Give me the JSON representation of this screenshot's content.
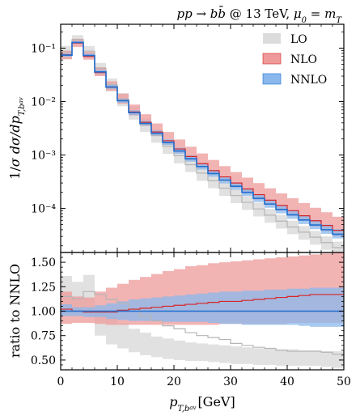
{
  "chart_data": {
    "type": "line",
    "title": "pp → b b̄ @ 13 TeV, μ₀ = m_T",
    "xlabel": "p_T,b_av [GeV]",
    "x_edges": [
      0,
      2,
      4,
      6,
      8,
      10,
      12,
      14,
      16,
      18,
      20,
      22,
      24,
      26,
      28,
      30,
      32,
      34,
      36,
      38,
      40,
      42,
      44,
      46,
      48,
      50
    ],
    "xlim": [
      0,
      50
    ],
    "xticks": [
      "0",
      "10",
      "20",
      "30",
      "40",
      "50"
    ],
    "top_panel": {
      "ylabel": "1/σ dσ/dp_T,b_av",
      "yscale": "log",
      "ylim": [
        1.5e-05,
        0.28
      ],
      "yticks": [
        "10⁻¹",
        "10⁻²",
        "10⁻³",
        "10⁻⁴"
      ],
      "series": [
        {
          "name": "LO",
          "color": "#b5b5b5",
          "fill": "#dcdcdc",
          "values": [
            0.085,
            0.145,
            0.088,
            0.042,
            0.021,
            0.0112,
            0.0063,
            0.0037,
            0.0023,
            0.00145,
            0.00097,
            0.00066,
            0.00046,
            0.00033,
            0.00024,
            0.000175,
            0.00013,
            9.8e-05,
            7.5e-05,
            5.8e-05,
            4.5e-05,
            3.6e-05,
            2.9e-05,
            2.3e-05,
            1.85e-05
          ],
          "lower": [
            0.062,
            0.115,
            0.068,
            0.031,
            0.0155,
            0.0082,
            0.0046,
            0.0027,
            0.0017,
            0.00105,
            0.0007,
            0.00048,
            0.00033,
            0.00024,
            0.000172,
            0.000126,
            9.4e-05,
            7.1e-05,
            5.4e-05,
            4.2e-05,
            3.3e-05,
            2.6e-05,
            2.1e-05,
            1.68e-05,
            1.35e-05
          ],
          "upper": [
            0.11,
            0.175,
            0.11,
            0.053,
            0.027,
            0.0145,
            0.0082,
            0.0048,
            0.003,
            0.00188,
            0.00125,
            0.00086,
            0.0006,
            0.00043,
            0.00031,
            0.000227,
            0.000169,
            0.000128,
            9.8e-05,
            7.6e-05,
            5.9e-05,
            4.7e-05,
            3.8e-05,
            3e-05,
            2.4e-05
          ]
        },
        {
          "name": "NLO",
          "color": "#d62728",
          "fill": "#ee9a9a",
          "values": [
            0.075,
            0.125,
            0.07,
            0.035,
            0.0185,
            0.0105,
            0.0064,
            0.0041,
            0.0027,
            0.00185,
            0.0013,
            0.00094,
            0.00069,
            0.00051,
            0.00039,
            0.0003,
            0.000232,
            0.000181,
            0.000143,
            0.000114,
            9.1e-05,
            7.3e-05,
            5.9e-05,
            4.8e-05,
            3.9e-05
          ],
          "lower": [
            0.062,
            0.105,
            0.061,
            0.03,
            0.016,
            0.0091,
            0.0055,
            0.0035,
            0.0023,
            0.00157,
            0.0011,
            0.00079,
            0.00058,
            0.00043,
            0.00032,
            0.000245,
            0.000188,
            0.000146,
            0.000115,
            9.1e-05,
            7.2e-05,
            5.8e-05,
            4.6e-05,
            3.7e-05,
            3e-05
          ],
          "upper": [
            0.09,
            0.15,
            0.085,
            0.044,
            0.024,
            0.014,
            0.0088,
            0.0058,
            0.0039,
            0.0027,
            0.00195,
            0.00143,
            0.00107,
            0.00081,
            0.00062,
            0.00048,
            0.000378,
            0.000299,
            0.000238,
            0.000192,
            0.000155,
            0.000126,
            0.000103,
            8.5e-05,
            7e-05
          ]
        },
        {
          "name": "NNLO",
          "color": "#1f6fd1",
          "fill": "#8ab8ec",
          "values": [
            0.074,
            0.128,
            0.073,
            0.036,
            0.0188,
            0.0104,
            0.0062,
            0.0039,
            0.00255,
            0.00172,
            0.00119,
            0.00085,
            0.00061,
            0.00045,
            0.00034,
            0.00026,
            0.0002,
            0.000155,
            0.000121,
            9.6e-05,
            7.6e-05,
            6.1e-05,
            4.9e-05,
            4e-05,
            3.3e-05
          ],
          "lower": [
            0.069,
            0.121,
            0.068,
            0.0335,
            0.0173,
            0.0095,
            0.0056,
            0.00352,
            0.00228,
            0.00153,
            0.00105,
            0.00075,
            0.000535,
            0.000393,
            0.000294,
            0.000224,
            0.000171,
            0.000132,
            0.000103,
            8.1e-05,
            6.4e-05,
            5.1e-05,
            4.1e-05,
            3.35e-05,
            2.75e-05
          ],
          "upper": [
            0.08,
            0.136,
            0.079,
            0.0392,
            0.0206,
            0.0115,
            0.0069,
            0.00438,
            0.00288,
            0.00196,
            0.00137,
            0.00098,
            0.000709,
            0.000527,
            0.000399,
            0.000307,
            0.000238,
            0.000186,
            0.000146,
            0.000116,
            9.3e-05,
            7.5e-05,
            6.1e-05,
            5e-05,
            4.1e-05
          ]
        }
      ]
    },
    "bottom_panel": {
      "ylabel": "ratio to NNLO",
      "ylim": [
        0.4,
        1.6
      ],
      "yticks": [
        "0.50",
        "0.75",
        "1.00",
        "1.25",
        "1.50"
      ],
      "series": [
        {
          "name": "LO",
          "color": "#b5b5b5",
          "fill": "#dcdcdc",
          "values": [
            1.15,
            1.13,
            1.2,
            1.17,
            1.12,
            1.08,
            1.02,
            0.95,
            0.9,
            0.85,
            0.82,
            0.78,
            0.75,
            0.73,
            0.71,
            0.67,
            0.65,
            0.63,
            0.62,
            0.6,
            0.59,
            0.59,
            0.59,
            0.58,
            0.56
          ],
          "lower": [
            1.0,
            0.99,
            1.03,
            0.75,
            0.66,
            0.62,
            0.58,
            0.55,
            0.53,
            0.51,
            0.5,
            0.49,
            0.49,
            0.48,
            0.47,
            0.46,
            0.46,
            0.45,
            0.45,
            0.44,
            0.44,
            0.44,
            0.44,
            0.43,
            0.42
          ],
          "upper": [
            1.36,
            1.3,
            1.37,
            1.0,
            0.95,
            0.88,
            0.82,
            0.78,
            0.74,
            0.72,
            0.7,
            0.68,
            0.67,
            0.66,
            0.65,
            0.64,
            0.63,
            0.62,
            0.62,
            0.61,
            0.61,
            0.6,
            0.6,
            0.59,
            0.59
          ]
        },
        {
          "name": "NLO",
          "color": "#d62728",
          "fill": "#ee9a9a",
          "values": [
            1.02,
            1.0,
            0.99,
            0.99,
            0.99,
            1.01,
            1.02,
            1.03,
            1.04,
            1.05,
            1.06,
            1.07,
            1.08,
            1.09,
            1.1,
            1.1,
            1.11,
            1.12,
            1.13,
            1.14,
            1.15,
            1.16,
            1.17,
            1.17,
            1.17
          ],
          "lower": [
            0.87,
            0.88,
            0.88,
            0.87,
            0.86,
            0.86,
            0.86,
            0.86,
            0.86,
            0.86,
            0.86,
            0.86,
            0.86,
            0.86,
            0.87,
            0.87,
            0.87,
            0.87,
            0.87,
            0.87,
            0.88,
            0.88,
            0.88,
            0.88,
            0.88
          ],
          "upper": [
            1.2,
            1.15,
            1.14,
            1.2,
            1.24,
            1.28,
            1.32,
            1.35,
            1.38,
            1.41,
            1.43,
            1.46,
            1.47,
            1.49,
            1.5,
            1.51,
            1.52,
            1.53,
            1.54,
            1.55,
            1.56,
            1.57,
            1.58,
            1.59,
            1.6
          ]
        },
        {
          "name": "NNLO",
          "color": "#1f6fd1",
          "fill": "#8ab8ec",
          "values": [
            1.0,
            1.0,
            1.0,
            1.0,
            1.0,
            1.0,
            1.0,
            1.0,
            1.0,
            1.0,
            1.0,
            1.0,
            1.0,
            1.0,
            1.0,
            1.0,
            1.0,
            1.0,
            1.0,
            1.0,
            1.0,
            1.0,
            1.0,
            1.0,
            1.0
          ],
          "lower": [
            0.95,
            0.95,
            0.94,
            0.94,
            0.92,
            0.91,
            0.9,
            0.9,
            0.9,
            0.89,
            0.89,
            0.89,
            0.89,
            0.88,
            0.87,
            0.87,
            0.86,
            0.86,
            0.86,
            0.86,
            0.86,
            0.85,
            0.84,
            0.84,
            0.84
          ],
          "upper": [
            1.07,
            1.04,
            1.04,
            1.06,
            1.08,
            1.1,
            1.12,
            1.13,
            1.14,
            1.15,
            1.16,
            1.17,
            1.18,
            1.19,
            1.2,
            1.2,
            1.21,
            1.21,
            1.22,
            1.22,
            1.23,
            1.23,
            1.24,
            1.24,
            1.24
          ]
        }
      ]
    },
    "legend": {
      "placement": "top-right",
      "entries": [
        "LO",
        "NLO",
        "NNLO"
      ]
    }
  }
}
